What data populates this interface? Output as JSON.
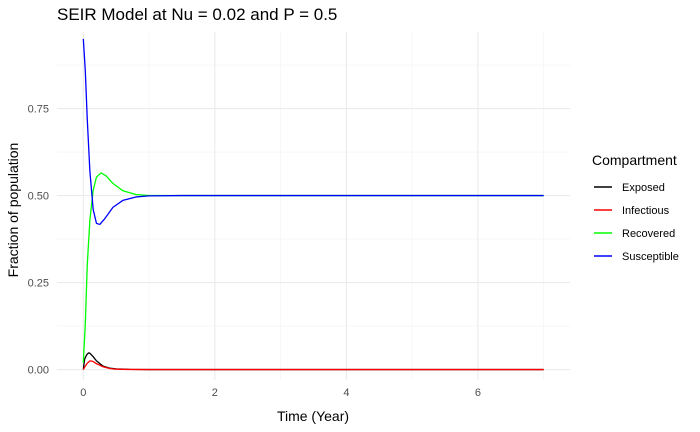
{
  "chart_data": {
    "type": "line",
    "title": "SEIR Model at Nu = 0.02 and P = 0.5",
    "xlabel": "Time (Year)",
    "ylabel": "Fraction of population",
    "xlim": [
      -0.4,
      7.4
    ],
    "ylim": [
      -0.03,
      0.97
    ],
    "x_ticks": [
      0,
      2,
      4,
      6
    ],
    "x_tick_labels": [
      "0",
      "2",
      "4",
      "6"
    ],
    "y_ticks": [
      0.0,
      0.25,
      0.5,
      0.75
    ],
    "y_tick_labels": [
      "0.00",
      "0.25",
      "0.50",
      "0.75"
    ],
    "grid": true,
    "legend": {
      "title": "Compartment",
      "position": "right"
    },
    "series": [
      {
        "name": "Exposed",
        "color": "#000000",
        "points": [
          [
            0,
            0.0
          ],
          [
            0.02,
            0.03
          ],
          [
            0.05,
            0.042
          ],
          [
            0.08,
            0.048
          ],
          [
            0.1,
            0.047
          ],
          [
            0.15,
            0.037
          ],
          [
            0.2,
            0.025
          ],
          [
            0.3,
            0.01
          ],
          [
            0.4,
            0.004
          ],
          [
            0.5,
            0.002
          ],
          [
            0.7,
            0.0005
          ],
          [
            1.0,
            0.0
          ],
          [
            7.0,
            0.0
          ]
        ]
      },
      {
        "name": "Infectious",
        "color": "#ff0000",
        "points": [
          [
            0,
            0.0
          ],
          [
            0.03,
            0.01
          ],
          [
            0.06,
            0.018
          ],
          [
            0.1,
            0.025
          ],
          [
            0.14,
            0.024
          ],
          [
            0.2,
            0.017
          ],
          [
            0.3,
            0.008
          ],
          [
            0.4,
            0.003
          ],
          [
            0.5,
            0.001
          ],
          [
            0.7,
            0.0003
          ],
          [
            1.0,
            0.0
          ],
          [
            7.0,
            0.0
          ]
        ]
      },
      {
        "name": "Recovered",
        "color": "#00ff00",
        "points": [
          [
            0,
            0.02
          ],
          [
            0.03,
            0.13
          ],
          [
            0.06,
            0.3
          ],
          [
            0.1,
            0.43
          ],
          [
            0.15,
            0.515
          ],
          [
            0.2,
            0.553
          ],
          [
            0.27,
            0.565
          ],
          [
            0.35,
            0.556
          ],
          [
            0.45,
            0.535
          ],
          [
            0.6,
            0.514
          ],
          [
            0.8,
            0.503
          ],
          [
            1.0,
            0.5
          ],
          [
            1.5,
            0.5
          ],
          [
            7.0,
            0.5
          ]
        ]
      },
      {
        "name": "Susceptible",
        "color": "#0000ff",
        "points": [
          [
            0,
            0.95
          ],
          [
            0.03,
            0.86
          ],
          [
            0.06,
            0.72
          ],
          [
            0.1,
            0.57
          ],
          [
            0.15,
            0.46
          ],
          [
            0.2,
            0.42
          ],
          [
            0.25,
            0.417
          ],
          [
            0.32,
            0.432
          ],
          [
            0.45,
            0.466
          ],
          [
            0.6,
            0.486
          ],
          [
            0.8,
            0.496
          ],
          [
            1.0,
            0.499
          ],
          [
            1.5,
            0.5
          ],
          [
            7.0,
            0.5
          ]
        ]
      }
    ]
  }
}
